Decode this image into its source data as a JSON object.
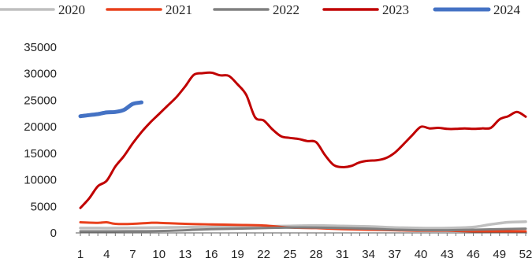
{
  "chart_data": {
    "type": "line",
    "title": "",
    "xlabel": "",
    "ylabel": "",
    "ylim": [
      0,
      35000
    ],
    "xlim": [
      1,
      52
    ],
    "y_ticks": [
      0,
      5000,
      10000,
      15000,
      20000,
      25000,
      30000,
      35000
    ],
    "x_ticks": [
      1,
      4,
      7,
      10,
      13,
      16,
      19,
      22,
      25,
      28,
      31,
      34,
      37,
      40,
      43,
      46,
      49,
      52
    ],
    "grid": false,
    "legend_position": "top",
    "series": [
      {
        "name": "2020",
        "color": "#bfbfbf",
        "points": [
          [
            1,
            900
          ],
          [
            5,
            900
          ],
          [
            10,
            1000
          ],
          [
            15,
            1100
          ],
          [
            20,
            1200
          ],
          [
            25,
            1300
          ],
          [
            28,
            1400
          ],
          [
            31,
            1300
          ],
          [
            34,
            1200
          ],
          [
            37,
            1000
          ],
          [
            40,
            900
          ],
          [
            43,
            900
          ],
          [
            46,
            1100
          ],
          [
            48,
            1600
          ],
          [
            50,
            2000
          ],
          [
            52,
            2100
          ]
        ]
      },
      {
        "name": "2021",
        "color": "#e8401c",
        "points": [
          [
            1,
            2000
          ],
          [
            3,
            1900
          ],
          [
            4,
            2000
          ],
          [
            5,
            1700
          ],
          [
            7,
            1700
          ],
          [
            9,
            1900
          ],
          [
            10,
            1900
          ],
          [
            13,
            1700
          ],
          [
            16,
            1600
          ],
          [
            19,
            1500
          ],
          [
            22,
            1400
          ],
          [
            25,
            1000
          ],
          [
            28,
            900
          ],
          [
            31,
            700
          ],
          [
            34,
            600
          ],
          [
            37,
            500
          ],
          [
            40,
            400
          ],
          [
            43,
            400
          ],
          [
            46,
            300
          ],
          [
            49,
            300
          ],
          [
            52,
            300
          ]
        ]
      },
      {
        "name": "2022",
        "color": "#808080",
        "points": [
          [
            1,
            300
          ],
          [
            5,
            300
          ],
          [
            10,
            350
          ],
          [
            13,
            500
          ],
          [
            16,
            700
          ],
          [
            19,
            800
          ],
          [
            22,
            900
          ],
          [
            25,
            1000
          ],
          [
            28,
            1000
          ],
          [
            31,
            900
          ],
          [
            34,
            800
          ],
          [
            37,
            600
          ],
          [
            40,
            500
          ],
          [
            43,
            500
          ],
          [
            46,
            600
          ],
          [
            49,
            700
          ],
          [
            52,
            800
          ]
        ]
      },
      {
        "name": "2023",
        "color": "#c00000",
        "points": [
          [
            1,
            4700
          ],
          [
            2,
            6500
          ],
          [
            3,
            8800
          ],
          [
            4,
            9800
          ],
          [
            5,
            12500
          ],
          [
            6,
            14500
          ],
          [
            7,
            16900
          ],
          [
            8,
            19000
          ],
          [
            9,
            20800
          ],
          [
            10,
            22400
          ],
          [
            11,
            24000
          ],
          [
            12,
            25600
          ],
          [
            13,
            27600
          ],
          [
            14,
            29800
          ],
          [
            15,
            30100
          ],
          [
            16,
            30200
          ],
          [
            17,
            29700
          ],
          [
            18,
            29600
          ],
          [
            19,
            28000
          ],
          [
            20,
            26000
          ],
          [
            21,
            21800
          ],
          [
            22,
            21200
          ],
          [
            23,
            19500
          ],
          [
            24,
            18200
          ],
          [
            25,
            17900
          ],
          [
            26,
            17700
          ],
          [
            27,
            17300
          ],
          [
            28,
            17100
          ],
          [
            29,
            14700
          ],
          [
            30,
            12800
          ],
          [
            31,
            12400
          ],
          [
            32,
            12600
          ],
          [
            33,
            13300
          ],
          [
            34,
            13600
          ],
          [
            35,
            13700
          ],
          [
            36,
            14100
          ],
          [
            37,
            15100
          ],
          [
            38,
            16700
          ],
          [
            39,
            18400
          ],
          [
            40,
            20000
          ],
          [
            41,
            19700
          ],
          [
            42,
            19800
          ],
          [
            43,
            19600
          ],
          [
            44,
            19600
          ],
          [
            45,
            19700
          ],
          [
            46,
            19600
          ],
          [
            47,
            19700
          ],
          [
            48,
            19800
          ],
          [
            49,
            21400
          ],
          [
            50,
            22000
          ],
          [
            51,
            22800
          ],
          [
            52,
            21900
          ]
        ]
      },
      {
        "name": "2024",
        "color": "#4472c4",
        "points": [
          [
            1,
            22000
          ],
          [
            2,
            22200
          ],
          [
            3,
            22400
          ],
          [
            4,
            22700
          ],
          [
            5,
            22800
          ],
          [
            6,
            23200
          ],
          [
            7,
            24300
          ],
          [
            8,
            24600
          ]
        ]
      }
    ]
  }
}
